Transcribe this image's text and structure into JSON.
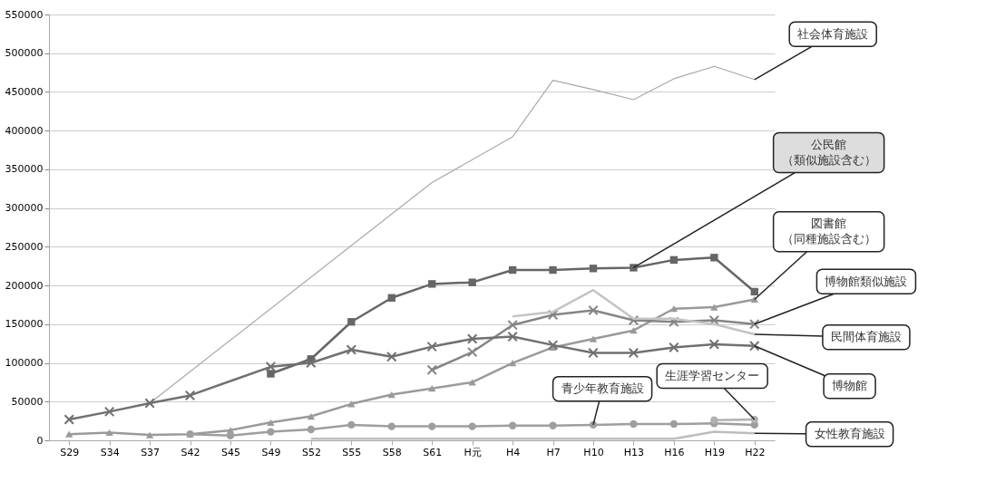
{
  "chart_data": {
    "type": "line",
    "categories": [
      "S29",
      "S34",
      "S37",
      "S42",
      "S45",
      "S49",
      "S52",
      "S55",
      "S58",
      "S61",
      "H元",
      "H4",
      "H7",
      "H10",
      "H13",
      "H16",
      "H19",
      "H22"
    ],
    "ylim": [
      0,
      550000
    ],
    "yticks": [
      0,
      50000,
      100000,
      150000,
      200000,
      250000,
      300000,
      350000,
      400000,
      450000,
      500000,
      550000
    ],
    "grid": "y",
    "series": [
      {
        "name": "社会体育施設",
        "color": "#a8a8a8",
        "marker": "none",
        "values": [
          null,
          null,
          48000,
          null,
          null,
          null,
          null,
          null,
          null,
          333000,
          null,
          392000,
          465000,
          453000,
          440000,
          467000,
          483000,
          466000
        ]
      },
      {
        "name": "公民館（類似施設含む）",
        "color": "#666666",
        "marker": "square",
        "values": [
          null,
          null,
          null,
          null,
          null,
          86000,
          105000,
          153000,
          184000,
          202000,
          204000,
          220000,
          220000,
          222000,
          223000,
          233000,
          236000,
          192000
        ]
      },
      {
        "name": "図書館（同種施設含む）",
        "color": "#9a9a9a",
        "marker": "triangle",
        "values": [
          8000,
          10000,
          7000,
          8000,
          13000,
          23000,
          31000,
          47000,
          59000,
          67000,
          75000,
          100000,
          120000,
          131000,
          142000,
          170000,
          172000,
          182000
        ]
      },
      {
        "name": "博物館類似施設",
        "color": "#858585",
        "marker": "cross",
        "values": [
          null,
          null,
          null,
          null,
          null,
          null,
          null,
          null,
          null,
          91000,
          114000,
          149000,
          162000,
          168000,
          155000,
          153000,
          155000,
          150000
        ]
      },
      {
        "name": "民間体育施設",
        "color": "#c4c4c4",
        "marker": "none",
        "values": [
          null,
          null,
          null,
          null,
          null,
          null,
          null,
          null,
          null,
          null,
          null,
          160000,
          166000,
          194000,
          157000,
          157000,
          150000,
          137000
        ]
      },
      {
        "name": "博物館",
        "color": "#707070",
        "marker": "cross",
        "values": [
          27000,
          37000,
          48000,
          58000,
          null,
          95000,
          100000,
          117000,
          108000,
          121000,
          131000,
          134000,
          123000,
          113000,
          113000,
          120000,
          124000,
          122000
        ]
      },
      {
        "name": "青少年教育施設",
        "color": "#9e9e9e",
        "marker": "circle",
        "values": [
          null,
          null,
          null,
          8000,
          6000,
          11000,
          14000,
          20000,
          18000,
          18000,
          18000,
          19000,
          19000,
          20000,
          21000,
          21000,
          22000,
          20000
        ]
      },
      {
        "name": "生涯学習センター",
        "color": "#b0b0b0",
        "marker": "circle",
        "values": [
          null,
          null,
          null,
          null,
          null,
          null,
          null,
          null,
          null,
          null,
          null,
          null,
          null,
          null,
          null,
          null,
          26000,
          27000
        ]
      },
      {
        "name": "女性教育施設",
        "color": "#bdbdbd",
        "marker": "none",
        "values": [
          null,
          null,
          null,
          null,
          null,
          null,
          2000,
          2000,
          2000,
          2000,
          2000,
          2000,
          2000,
          2000,
          2000,
          2000,
          11000,
          9000
        ]
      }
    ]
  }
}
